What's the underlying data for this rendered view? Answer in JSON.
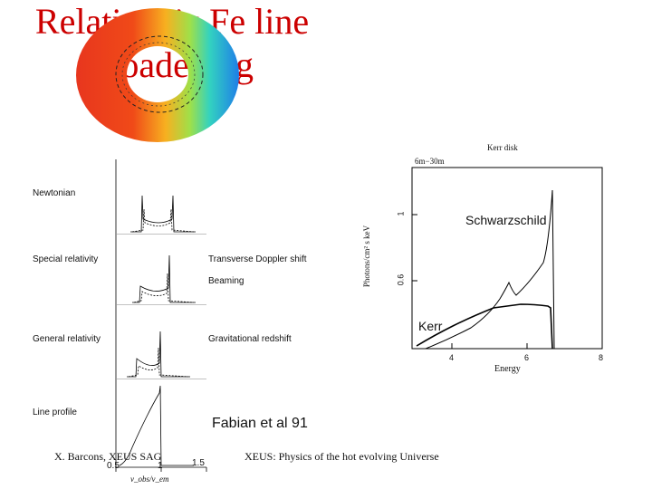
{
  "title_line1": "Relativistic Fe line",
  "title_line2": "broadening",
  "left_panel": {
    "labels": [
      "Newtonian",
      "Special relativity",
      "General relativity",
      "Line profile"
    ],
    "effects": [
      "Transverse Doppler shift",
      "Beaming",
      "Gravitational redshift"
    ],
    "xticks": [
      "0.5",
      "1",
      "1.5"
    ],
    "xlabel": "ν_obs/ν_em"
  },
  "right_plot": {
    "header": "Kerr disk",
    "range": "6m−30m",
    "ylabel": "Photons/cm² s keV",
    "yticks": [
      "1",
      "0.6"
    ],
    "xlabel": "Energy",
    "xticks": [
      "4",
      "6",
      "8"
    ],
    "overlay_schwarzschild": "Schwarzschild",
    "overlay_kerr": "Kerr"
  },
  "citation": "Fabian et al 91",
  "footer_left": "X. Barcons, XEUS SAG",
  "footer_center": "XEUS: Physics of the hot evolving Universe"
}
